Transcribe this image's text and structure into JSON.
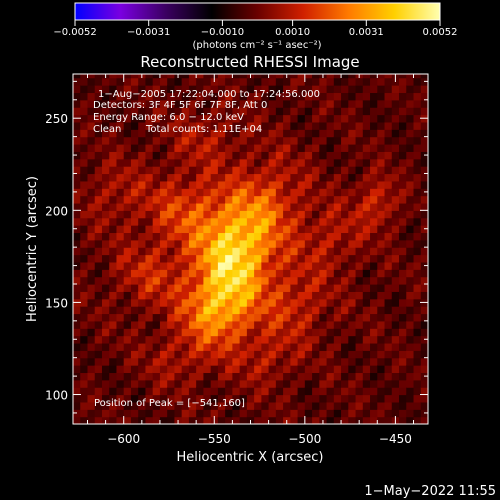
{
  "chart_data": {
    "type": "heatmap",
    "title": "Reconstructed RHESSI Image",
    "xlabel": "Heliocentric X (arcsec)",
    "ylabel": "Heliocentric Y (arcsec)",
    "xlim": [
      -628,
      -432
    ],
    "ylim": [
      84,
      274
    ],
    "x_ticks": [
      -600,
      -550,
      -500,
      -450
    ],
    "x_tick_labels": [
      "−600",
      "−550",
      "−500",
      "−450"
    ],
    "y_ticks": [
      100,
      150,
      200,
      250
    ],
    "y_tick_labels": [
      "100",
      "150",
      "200",
      "250"
    ],
    "colorbar": {
      "range": [
        -0.0052,
        0.0052
      ],
      "tick_values": [
        -0.0052,
        -0.0031,
        -0.001,
        0.001,
        0.0031,
        0.0052
      ],
      "tick_labels": [
        "−0.0052",
        "−0.0031",
        "−0.0010",
        "0.0010",
        "0.0031",
        "0.0052"
      ],
      "unit_label": "(photons cm⁻² s⁻¹ asec⁻²)",
      "colormap": [
        "#0000ff",
        "#7a00e0",
        "#3a0060",
        "#000000",
        "#6a0000",
        "#d02000",
        "#ff7a00",
        "#ffd000",
        "#ffffb0"
      ]
    },
    "peak": [
      -541,
      160
    ],
    "peak_value": 0.0052,
    "sources": [
      {
        "x": -542,
        "y": 162,
        "sx": 14,
        "sy": 22,
        "amp": 1.0
      },
      {
        "x": -535,
        "y": 182,
        "sx": 14,
        "sy": 16,
        "amp": 0.75
      },
      {
        "x": -552,
        "y": 145,
        "sx": 12,
        "sy": 12,
        "amp": 0.6
      },
      {
        "x": -565,
        "y": 200,
        "sx": 16,
        "sy": 14,
        "amp": 0.55
      },
      {
        "x": -520,
        "y": 205,
        "sx": 14,
        "sy": 16,
        "amp": 0.55
      },
      {
        "x": -505,
        "y": 150,
        "sx": 12,
        "sy": 14,
        "amp": 0.45
      },
      {
        "x": -585,
        "y": 165,
        "sx": 14,
        "sy": 12,
        "amp": 0.4
      },
      {
        "x": -485,
        "y": 185,
        "sx": 12,
        "sy": 12,
        "amp": 0.35
      },
      {
        "x": -460,
        "y": 205,
        "sx": 8,
        "sy": 10,
        "amp": 0.5
      },
      {
        "x": -605,
        "y": 210,
        "sx": 12,
        "sy": 12,
        "amp": 0.3
      },
      {
        "x": -570,
        "y": 120,
        "sx": 12,
        "sy": 10,
        "amp": 0.3
      },
      {
        "x": -520,
        "y": 120,
        "sx": 10,
        "sy": 10,
        "amp": 0.3
      },
      {
        "x": -555,
        "y": 240,
        "sx": 14,
        "sy": 10,
        "amp": 0.3
      }
    ],
    "grid": false
  },
  "info": {
    "time_range": "1−Aug−2005 17:22:04.000 to 17:24:56.000",
    "detectors": "Detectors: 3F 4F 5F 6F 7F 8F, Att 0",
    "energy_range": "Energy Range: 6.0 − 12.0 keV",
    "algorithm": "Clean",
    "total_counts": "Total counts: 1.11E+04",
    "peak_position": "Position of Peak = [−541,160]"
  },
  "timestamp": "1−May−2022 11:55"
}
